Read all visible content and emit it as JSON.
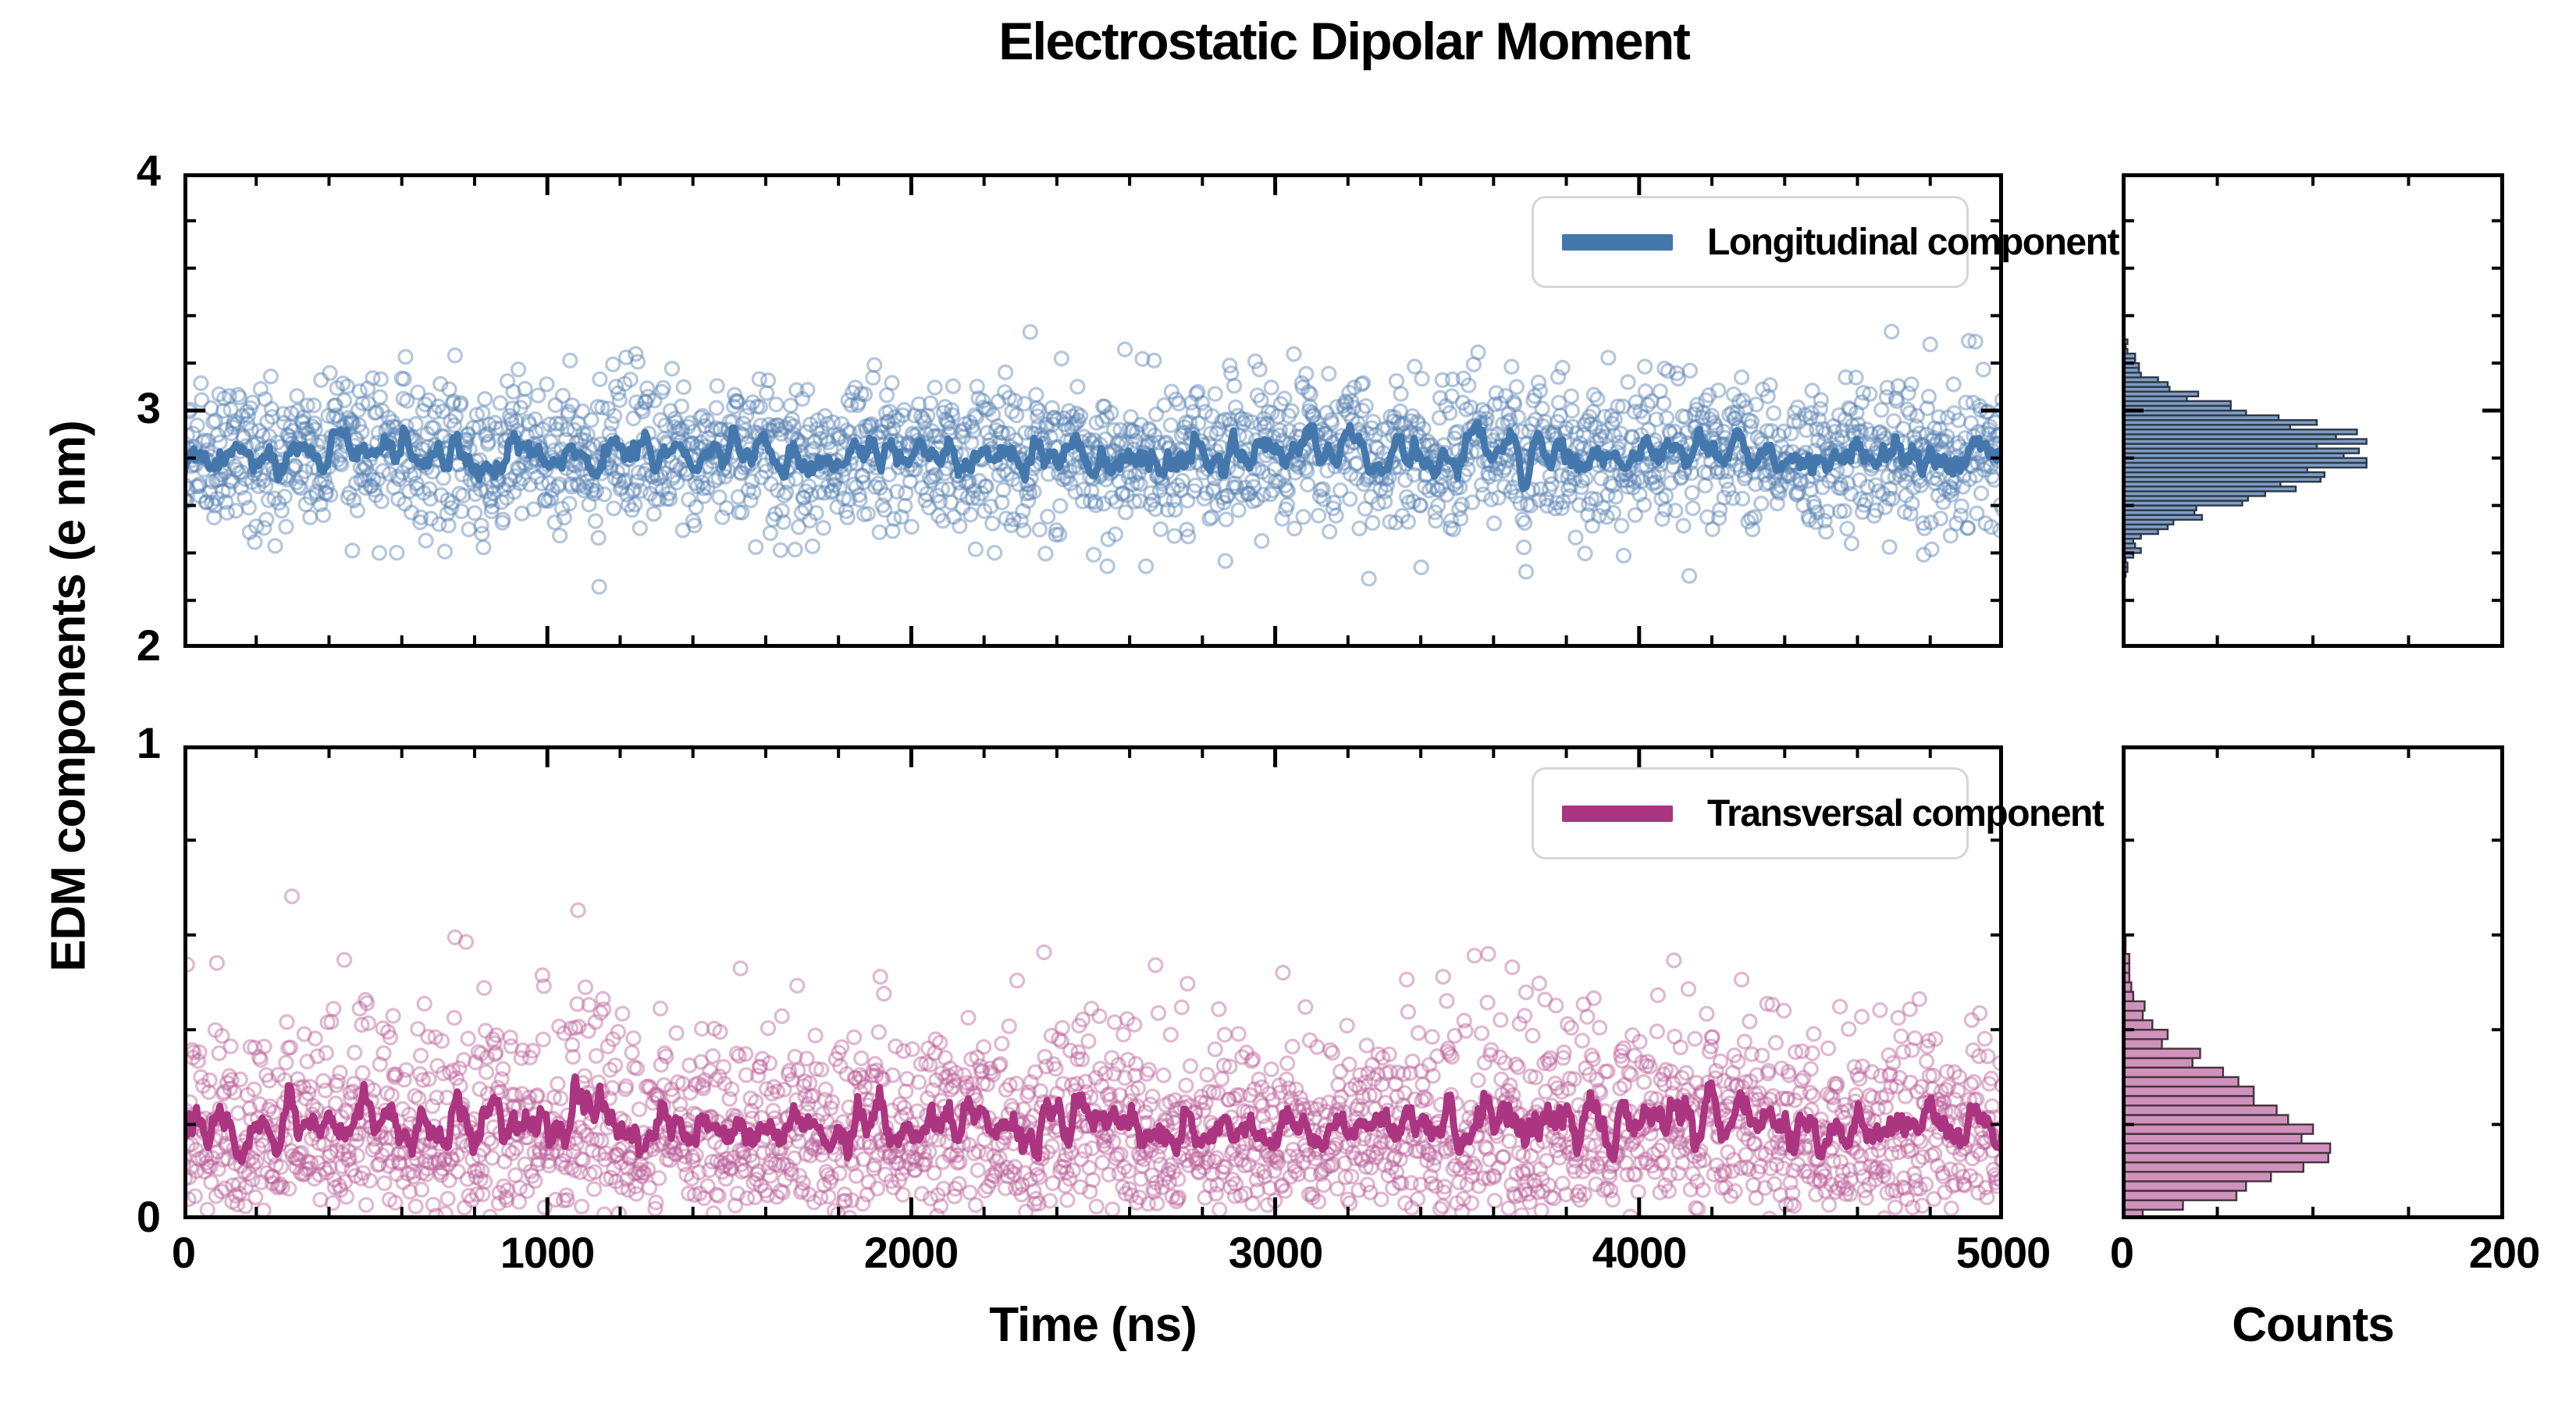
{
  "chart_data": {
    "type": "scatter",
    "title": "Electrostatic Dipolar Moment",
    "xlabel": "Time (ns)",
    "ylabel": "EDM components (e nm)",
    "counts_axis_label": "Counts",
    "x_range": [
      0,
      5000
    ],
    "x_major_ticks": [
      0,
      1000,
      2000,
      3000,
      4000,
      5000
    ],
    "x_minor_step": 200,
    "counts_range": [
      0,
      200
    ],
    "counts_major_ticks": [
      0,
      200
    ],
    "counts_minor_step": 50,
    "legend_position": "upper right",
    "marker_style": "open-circle",
    "axis_color": "#000000",
    "background": "#ffffff",
    "panels": [
      {
        "id": "longitudinal",
        "legend_label": "Longitudinal component",
        "y_range": [
          2,
          4
        ],
        "y_major_ticks": [
          2,
          3,
          4
        ],
        "y_minor_step": 0.2,
        "distribution": "gaussian",
        "mean": 2.81,
        "std": 0.16,
        "n_points": 2500,
        "line_type": "moving_average",
        "hist_bin_width": 0.02,
        "hist_range": [
          2.3,
          3.3
        ],
        "hist_peak_count": 127,
        "colors": {
          "line": "#4478ad",
          "scatter": "rgba(86,128,178,0.45)",
          "hist_fill": "#7f9dc4",
          "hist_edge": "#2c3947"
        }
      },
      {
        "id": "transversal",
        "legend_label": "Transversal component",
        "y_range": [
          0,
          1
        ],
        "y_major_ticks": [
          0,
          1
        ],
        "y_minor_step": 0.2,
        "distribution": "rayleigh",
        "mode": 0.16,
        "mean": 0.2,
        "n_points": 2500,
        "line_type": "moving_average",
        "hist_bin_width": 0.02,
        "hist_range": [
          0,
          0.62
        ],
        "hist_peak_count": 108,
        "colors": {
          "line": "#ab3580",
          "scatter": "rgba(187,95,154,0.45)",
          "hist_fill": "#d092bc",
          "hist_edge": "#44333d"
        }
      }
    ]
  }
}
